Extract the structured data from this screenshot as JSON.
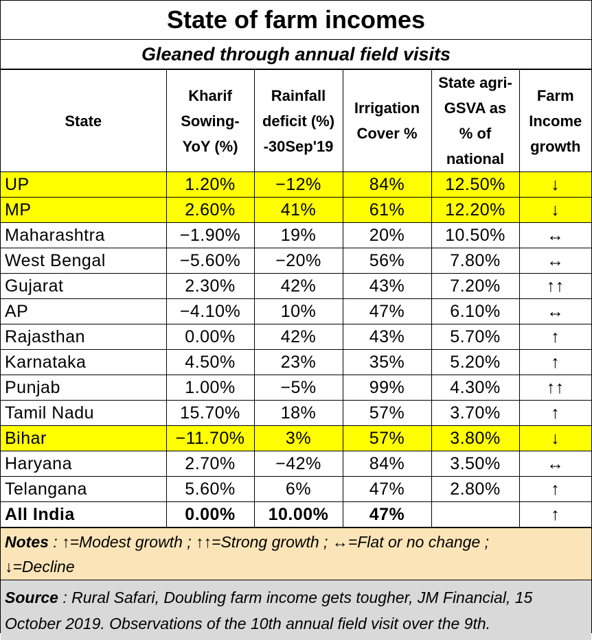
{
  "title": "State of farm incomes",
  "subtitle": "Gleaned through annual field visits",
  "headers": {
    "state": "State",
    "kharif": [
      "Kharif",
      "Sowing-",
      "YoY (%)"
    ],
    "rainfall": [
      "Rainfall",
      "deficit (%)",
      "-30Sep'19"
    ],
    "irrigation": [
      "Irrigation",
      "Cover %"
    ],
    "gsva": [
      "State agri-",
      "GSVA as",
      "% of",
      "national"
    ],
    "farm": [
      "Farm",
      "Income",
      "growth"
    ]
  },
  "rows": [
    {
      "state": "UP",
      "kharif": "1.20%",
      "rainfall": "−12%",
      "irrigation": "84%",
      "gsva": "12.50%",
      "growth": "↓",
      "highlight": true
    },
    {
      "state": "MP",
      "kharif": "2.60%",
      "rainfall": "41%",
      "irrigation": "61%",
      "gsva": "12.20%",
      "growth": "↓",
      "highlight": true
    },
    {
      "state": "Maharashtra",
      "kharif": "−1.90%",
      "rainfall": "19%",
      "irrigation": "20%",
      "gsva": "10.50%",
      "growth": "↔"
    },
    {
      "state": "West Bengal",
      "kharif": "−5.60%",
      "rainfall": "−20%",
      "irrigation": "56%",
      "gsva": "7.80%",
      "growth": "↔"
    },
    {
      "state": "Gujarat",
      "kharif": "2.30%",
      "rainfall": "42%",
      "irrigation": "43%",
      "gsva": "7.20%",
      "growth": "↑↑"
    },
    {
      "state": "AP",
      "kharif": "−4.10%",
      "rainfall": "10%",
      "irrigation": "47%",
      "gsva": "6.10%",
      "growth": "↔"
    },
    {
      "state": "Rajasthan",
      "kharif": "0.00%",
      "rainfall": "42%",
      "irrigation": "43%",
      "gsva": "5.70%",
      "growth": "↑"
    },
    {
      "state": "Karnataka",
      "kharif": "4.50%",
      "rainfall": "23%",
      "irrigation": "35%",
      "gsva": "5.20%",
      "growth": "↑"
    },
    {
      "state": "Punjab",
      "kharif": "1.00%",
      "rainfall": "−5%",
      "irrigation": "99%",
      "gsva": "4.30%",
      "growth": "↑↑"
    },
    {
      "state": "Tamil Nadu",
      "kharif": "15.70%",
      "rainfall": "18%",
      "irrigation": "57%",
      "gsva": "3.70%",
      "growth": "↑"
    },
    {
      "state": "Bihar",
      "kharif": "−11.70%",
      "rainfall": "3%",
      "irrigation": "57%",
      "gsva": "3.80%",
      "growth": "↓",
      "highlight": true
    },
    {
      "state": "Haryana",
      "kharif": "2.70%",
      "rainfall": "−42%",
      "irrigation": "84%",
      "gsva": "3.50%",
      "growth": "↔"
    },
    {
      "state": "Telangana",
      "kharif": "5.60%",
      "rainfall": "6%",
      "irrigation": "47%",
      "gsva": "2.80%",
      "growth": "↑"
    },
    {
      "state": "All India",
      "kharif": "0.00%",
      "rainfall": "10.00%",
      "irrigation": "47%",
      "gsva": "",
      "growth": "↑",
      "total": true
    }
  ],
  "notes": {
    "label": "Notes",
    "modest_sym": "↑",
    "modest_text": "=Modest growth ;",
    "strong_sym": "↑↑",
    "strong_text": "=Strong growth ;",
    "flat_sym": "↔",
    "flat_text": "=Flat or no change ;",
    "decline_sym": "↓",
    "decline_text": "=Decline"
  },
  "source": {
    "label": "Source",
    "text": " : Rural Safari, Doubling farm income gets tougher, JM Financial, 15 October 2019. Observations of the 10th annual field visit over the 9th."
  },
  "colors": {
    "highlight": "#ffff00",
    "notes_bg": "#fbe5b8",
    "source_bg": "#d9d9d9"
  }
}
